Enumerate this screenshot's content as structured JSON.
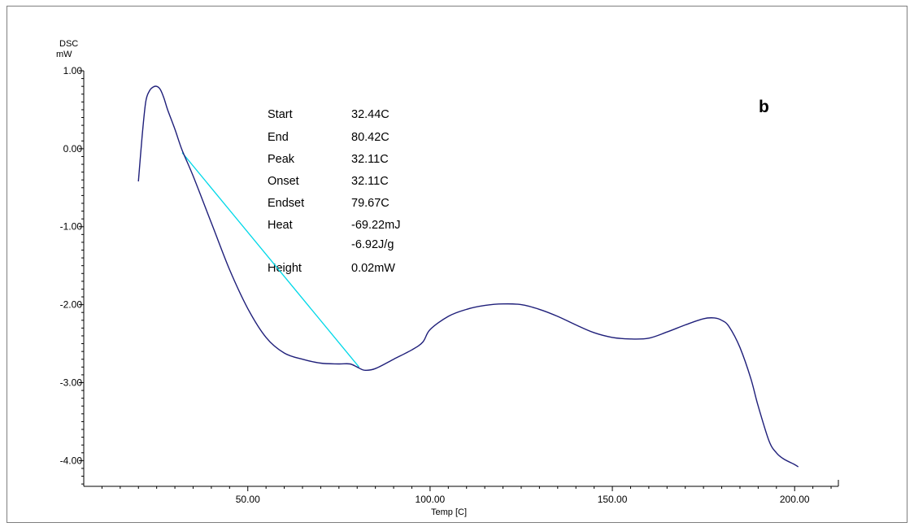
{
  "chart_data": {
    "type": "line",
    "ylabel_top": "DSC",
    "ylabel_unit": "mW",
    "xlabel": "Temp  [C]",
    "panel_label": "b",
    "xlim": [
      5,
      212
    ],
    "ylim": [
      -4.33,
      1.0
    ],
    "x_ticks": [
      50,
      100,
      150,
      200
    ],
    "x_tick_labels": [
      "50.00",
      "100.00",
      "150.00",
      "200.00"
    ],
    "y_ticks": [
      1,
      0,
      -1,
      -2,
      -3,
      -4
    ],
    "y_tick_labels": [
      "1.00",
      "0.00",
      "-1.00",
      "-2.00",
      "-3.00",
      "-4.00"
    ],
    "grid": false,
    "series": [
      {
        "color": "#1f1f7a",
        "x": [
          20,
          21,
          22,
          23,
          24,
          25,
          26,
          27,
          28,
          30,
          32,
          35,
          40,
          45,
          50,
          55,
          60,
          65,
          70,
          75,
          78,
          80,
          82,
          85,
          90,
          95,
          98,
          100,
          105,
          110,
          115,
          120,
          125,
          130,
          135,
          140,
          145,
          150,
          155,
          160,
          165,
          170,
          175,
          178,
          180,
          182,
          185,
          188,
          190,
          193,
          195,
          197,
          200,
          201
        ],
        "y": [
          -0.42,
          0.15,
          0.6,
          0.74,
          0.79,
          0.8,
          0.76,
          0.65,
          0.5,
          0.25,
          -0.02,
          -0.35,
          -0.95,
          -1.55,
          -2.05,
          -2.42,
          -2.62,
          -2.7,
          -2.75,
          -2.76,
          -2.76,
          -2.8,
          -2.84,
          -2.82,
          -2.7,
          -2.58,
          -2.48,
          -2.32,
          -2.15,
          -2.06,
          -2.01,
          -1.99,
          -2.0,
          -2.06,
          -2.15,
          -2.26,
          -2.36,
          -2.42,
          -2.44,
          -2.43,
          -2.35,
          -2.26,
          -2.18,
          -2.17,
          -2.2,
          -2.28,
          -2.55,
          -2.95,
          -3.3,
          -3.75,
          -3.9,
          -3.98,
          -4.05,
          -4.08
        ]
      }
    ],
    "baseline": {
      "color": "#00d8e8",
      "x": [
        32,
        80.5
      ],
      "y": [
        -0.05,
        -2.8
      ]
    },
    "annotations": {
      "labels": [
        "Start",
        "End",
        "Peak",
        "Onset",
        "Endset",
        "Heat",
        "",
        "Height"
      ],
      "values": [
        "32.44C",
        "80.42C",
        "32.11C",
        "32.11C",
        "79.67C",
        "-69.22mJ",
        "-6.92J/g",
        "0.02mW"
      ]
    }
  }
}
